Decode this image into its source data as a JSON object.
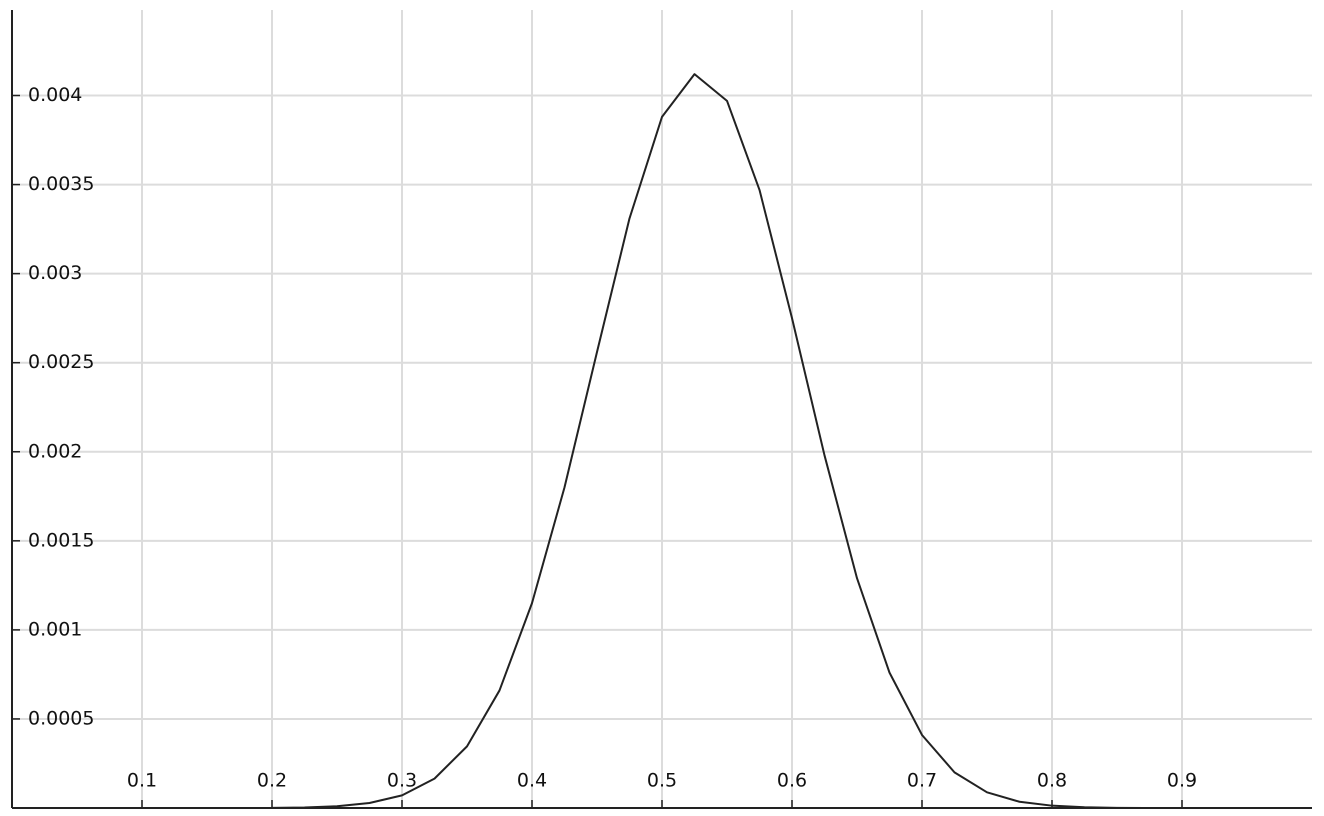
{
  "chart_data": {
    "type": "line",
    "x": [
      0.2,
      0.225,
      0.25,
      0.275,
      0.3,
      0.325,
      0.35,
      0.375,
      0.4,
      0.425,
      0.45,
      0.475,
      0.5,
      0.525,
      0.55,
      0.575,
      0.6,
      0.625,
      0.65,
      0.675,
      0.7,
      0.725,
      0.75,
      0.775,
      0.8,
      0.825,
      0.85,
      0.875,
      0.9,
      0.95,
      1.0
    ],
    "series": [
      {
        "color": "#222222",
        "values": [
          1e-06,
          3e-06,
          1e-05,
          2.8e-05,
          7.1e-05,
          0.000165,
          0.000346,
          0.00066,
          0.00115,
          0.0018,
          0.00256,
          0.00331,
          0.00388,
          0.00412,
          0.00397,
          0.00347,
          0.00275,
          0.00198,
          0.00129,
          0.00076,
          0.00041,
          0.0002,
          8.8e-05,
          3.5e-05,
          1.3e-05,
          4e-06,
          1e-06,
          0,
          0,
          0,
          0
        ]
      }
    ],
    "xlim": [
      0,
      1
    ],
    "ylim": [
      0,
      0.00448
    ],
    "xticks": [
      0.1,
      0.2,
      0.3,
      0.4,
      0.5,
      0.6,
      0.7,
      0.8,
      0.9
    ],
    "yticks": [
      0.0005,
      0.001,
      0.0015,
      0.002,
      0.0025,
      0.003,
      0.0035,
      0.004
    ],
    "grid": true
  }
}
